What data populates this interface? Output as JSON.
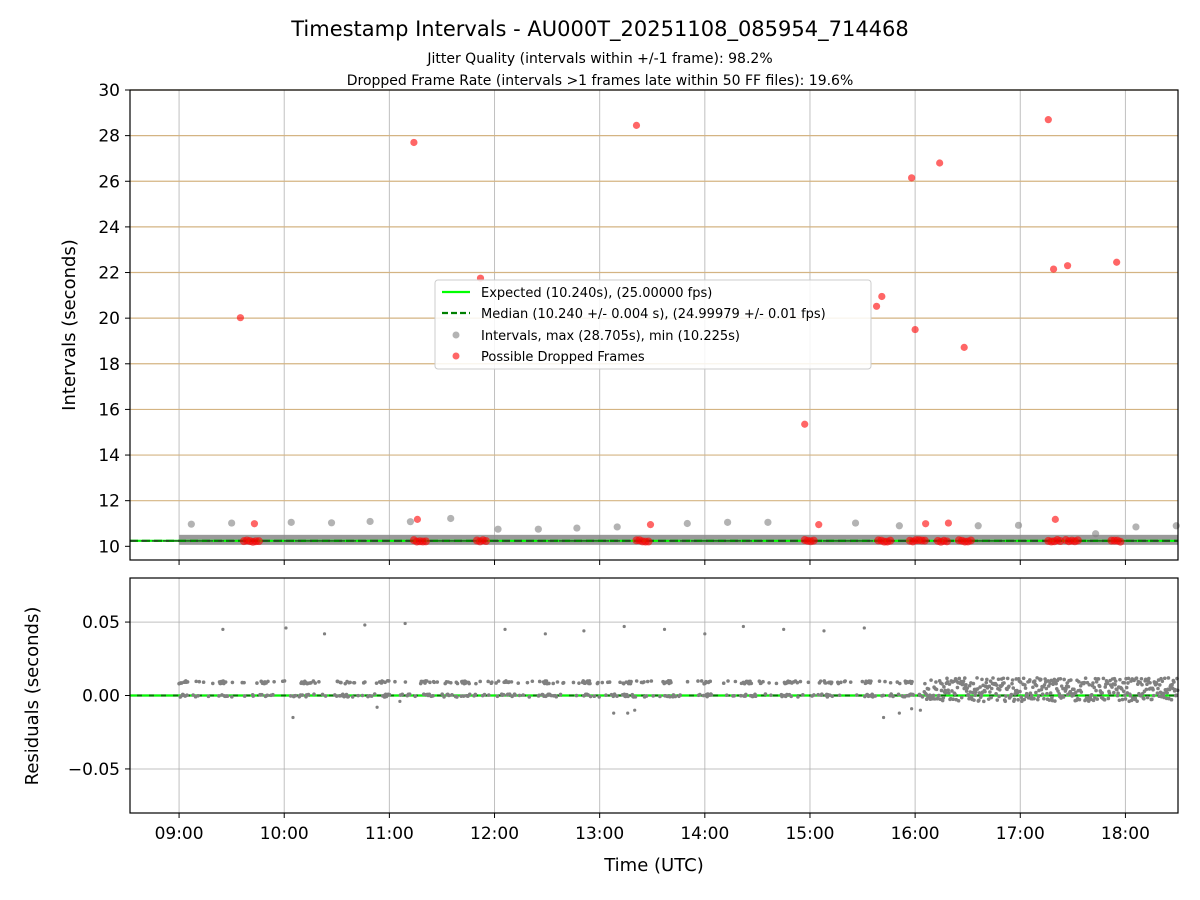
{
  "chart_data": [
    {
      "type": "scatter",
      "title": "Timestamp Intervals - AU000T_20251108_085954_714468",
      "subtitle_lines": [
        "Jitter Quality (intervals within +/-1 frame): 98.2%",
        "Dropped Frame Rate (intervals >1 frames late within 50 FF files): 19.6%"
      ],
      "xlabel": "",
      "ylabel": "Intervals (seconds)",
      "xlim": [
        "08:32",
        "18:30"
      ],
      "ylim": [
        9.4,
        30
      ],
      "x_ticks": [
        "09:00",
        "10:00",
        "11:00",
        "12:00",
        "13:00",
        "14:00",
        "15:00",
        "16:00",
        "17:00",
        "18:00"
      ],
      "y_ticks": [
        10,
        12,
        14,
        16,
        18,
        20,
        22,
        24,
        26,
        28,
        30
      ],
      "grid": true,
      "horizontal_reference_lines": [
        12,
        14,
        16,
        18,
        20,
        22,
        24,
        26,
        28,
        30
      ],
      "legend_position": "center",
      "lines": [
        {
          "name": "Expected (10.240s), (25.00000 fps)",
          "y": 10.24,
          "style": "solid",
          "color": "#00ff00"
        },
        {
          "name": "Median (10.240 +/- 0.004 s), (24.99979 +/- 0.01 fps)",
          "y": 10.24,
          "style": "dashed",
          "color": "#008000"
        }
      ],
      "series": [
        {
          "name": "Intervals, max (28.705s), min (10.225s)",
          "color": "#808080",
          "points": [
            [
              "09:07",
              10.97
            ],
            [
              "09:30",
              11.02
            ],
            [
              "10:04",
              11.05
            ],
            [
              "10:27",
              11.03
            ],
            [
              "10:49",
              11.09
            ],
            [
              "11:12",
              11.08
            ],
            [
              "11:35",
              11.22
            ],
            [
              "12:02",
              10.75
            ],
            [
              "12:25",
              10.75
            ],
            [
              "12:47",
              10.8
            ],
            [
              "13:10",
              10.85
            ],
            [
              "13:50",
              11.0
            ],
            [
              "14:13",
              11.05
            ],
            [
              "14:36",
              11.05
            ],
            [
              "15:26",
              11.02
            ],
            [
              "15:51",
              10.9
            ],
            [
              "16:36",
              10.9
            ],
            [
              "16:59",
              10.92
            ],
            [
              "17:43",
              10.55
            ],
            [
              "18:06",
              10.85
            ],
            [
              "18:29",
              10.9
            ]
          ]
        },
        {
          "name": "Possible Dropped Frames",
          "color": "#ff0000",
          "points": [
            [
              "09:35",
              20.02
            ],
            [
              "09:43",
              10.99
            ],
            [
              "11:14",
              27.7
            ],
            [
              "11:16",
              11.18
            ],
            [
              "11:52",
              21.75
            ],
            [
              "13:21",
              28.45
            ],
            [
              "13:29",
              10.95
            ],
            [
              "14:57",
              15.35
            ],
            [
              "15:05",
              10.95
            ],
            [
              "15:38",
              20.52
            ],
            [
              "15:41",
              20.95
            ],
            [
              "15:58",
              26.15
            ],
            [
              "16:00",
              19.5
            ],
            [
              "16:06",
              10.99
            ],
            [
              "16:14",
              26.8
            ],
            [
              "16:19",
              11.02
            ],
            [
              "16:28",
              18.72
            ],
            [
              "17:16",
              28.7
            ],
            [
              "17:19",
              22.15
            ],
            [
              "17:20",
              11.18
            ],
            [
              "17:27",
              22.3
            ],
            [
              "17:55",
              22.45
            ]
          ]
        }
      ]
    },
    {
      "type": "scatter",
      "title": "",
      "xlabel": "Time (UTC)",
      "ylabel": "Residuals (seconds)",
      "xlim": [
        "08:32",
        "18:30"
      ],
      "ylim": [
        -0.08,
        0.08
      ],
      "x_ticks": [
        "09:00",
        "10:00",
        "11:00",
        "12:00",
        "13:00",
        "14:00",
        "15:00",
        "16:00",
        "17:00",
        "18:00"
      ],
      "y_ticks": [
        "0.05",
        "0.00",
        "−0.05"
      ],
      "grid": true,
      "zero_line_color": "#00ff00",
      "median_line_color": "#008000",
      "series": [
        {
          "name": "Residuals",
          "color": "#808080",
          "baseline_band": [
            -0.002,
            0.01
          ],
          "outliers": [
            [
              "09:25",
              0.045
            ],
            [
              "10:01",
              0.046
            ],
            [
              "10:23",
              0.042
            ],
            [
              "10:46",
              0.048
            ],
            [
              "11:09",
              0.049
            ],
            [
              "12:06",
              0.045
            ],
            [
              "12:29",
              0.042
            ],
            [
              "12:51",
              0.044
            ],
            [
              "13:14",
              0.047
            ],
            [
              "13:37",
              0.045
            ],
            [
              "14:00",
              0.042
            ],
            [
              "14:22",
              0.047
            ],
            [
              "14:45",
              0.045
            ],
            [
              "15:08",
              0.044
            ],
            [
              "15:31",
              0.046
            ],
            [
              "10:05",
              -0.015
            ],
            [
              "11:06",
              -0.004
            ],
            [
              "13:08",
              -0.012
            ],
            [
              "13:16",
              -0.012
            ],
            [
              "13:20",
              -0.01
            ],
            [
              "15:42",
              -0.015
            ],
            [
              "15:51",
              -0.012
            ],
            [
              "15:58",
              -0.009
            ],
            [
              "16:03",
              -0.01
            ],
            [
              "10:53",
              -0.008
            ]
          ]
        }
      ]
    }
  ]
}
